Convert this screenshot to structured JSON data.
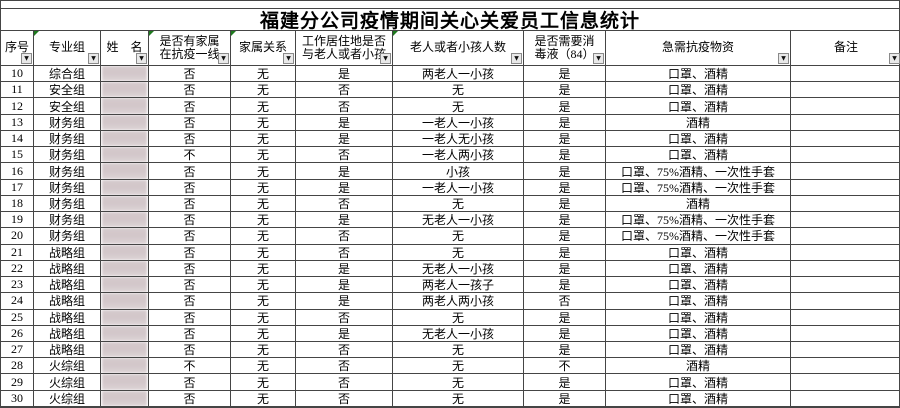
{
  "title": "福建分公司疫情期间关心关爱员工信息统计",
  "filter_icon": "▼",
  "colors": {
    "grid": "#454545",
    "corner_mark": "#1f7a1f",
    "redaction": "#d6cbce"
  },
  "columns": [
    {
      "label": "序号",
      "corner_mark": false
    },
    {
      "label": "专业组",
      "corner_mark": true
    },
    {
      "label": "姓　名",
      "corner_mark": false
    },
    {
      "label": "是否有家属\n在抗疫一线",
      "corner_mark": true
    },
    {
      "label": "家属关系",
      "corner_mark": true
    },
    {
      "label": "工作居住地是否\n与老人或者小孩",
      "corner_mark": false
    },
    {
      "label": "老人或者小孩人数",
      "corner_mark": true
    },
    {
      "label": "是否需要消\n毒液（84）",
      "corner_mark": false
    },
    {
      "label": "急需抗疫物资",
      "corner_mark": false
    },
    {
      "label": "备注",
      "corner_mark": false
    }
  ],
  "rows": [
    {
      "no": "10",
      "group": "综合组",
      "name": "",
      "family_frontline": "否",
      "family_relation": "无",
      "lives_with_elderly_children": "是",
      "elderly_children_count": "两老人一小孩",
      "needs_disinfectant": "是",
      "urgent_supplies": "口罩、酒精",
      "note": ""
    },
    {
      "no": "11",
      "group": "安全组",
      "name": "",
      "family_frontline": "否",
      "family_relation": "无",
      "lives_with_elderly_children": "否",
      "elderly_children_count": "无",
      "needs_disinfectant": "是",
      "urgent_supplies": "口罩、酒精",
      "note": ""
    },
    {
      "no": "12",
      "group": "安全组",
      "name": "",
      "family_frontline": "否",
      "family_relation": "无",
      "lives_with_elderly_children": "否",
      "elderly_children_count": "无",
      "needs_disinfectant": "是",
      "urgent_supplies": "口罩、酒精",
      "note": ""
    },
    {
      "no": "13",
      "group": "财务组",
      "name": "",
      "family_frontline": "否",
      "family_relation": "无",
      "lives_with_elderly_children": "是",
      "elderly_children_count": "一老人一小孩",
      "needs_disinfectant": "是",
      "urgent_supplies": "酒精",
      "note": ""
    },
    {
      "no": "14",
      "group": "财务组",
      "name": "",
      "family_frontline": "否",
      "family_relation": "无",
      "lives_with_elderly_children": "是",
      "elderly_children_count": "一老人无小孩",
      "needs_disinfectant": "是",
      "urgent_supplies": "口罩、酒精",
      "note": ""
    },
    {
      "no": "15",
      "group": "财务组",
      "name": "",
      "family_frontline": "不",
      "family_relation": "无",
      "lives_with_elderly_children": "否",
      "elderly_children_count": "一老人两小孩",
      "needs_disinfectant": "是",
      "urgent_supplies": "口罩、酒精",
      "note": ""
    },
    {
      "no": "16",
      "group": "财务组",
      "name": "",
      "family_frontline": "否",
      "family_relation": "无",
      "lives_with_elderly_children": "是",
      "elderly_children_count": "小孩",
      "needs_disinfectant": "是",
      "urgent_supplies": "口罩、75%酒精、一次性手套",
      "note": ""
    },
    {
      "no": "17",
      "group": "财务组",
      "name": "",
      "family_frontline": "否",
      "family_relation": "无",
      "lives_with_elderly_children": "是",
      "elderly_children_count": "一老人一小孩",
      "needs_disinfectant": "是",
      "urgent_supplies": "口罩、75%酒精、一次性手套",
      "note": ""
    },
    {
      "no": "18",
      "group": "财务组",
      "name": "",
      "family_frontline": "否",
      "family_relation": "无",
      "lives_with_elderly_children": "否",
      "elderly_children_count": "无",
      "needs_disinfectant": "是",
      "urgent_supplies": "酒精",
      "note": ""
    },
    {
      "no": "19",
      "group": "财务组",
      "name": "",
      "family_frontline": "否",
      "family_relation": "无",
      "lives_with_elderly_children": "是",
      "elderly_children_count": "无老人一小孩",
      "needs_disinfectant": "是",
      "urgent_supplies": "口罩、75%酒精、一次性手套",
      "note": ""
    },
    {
      "no": "20",
      "group": "财务组",
      "name": "",
      "family_frontline": "否",
      "family_relation": "无",
      "lives_with_elderly_children": "否",
      "elderly_children_count": "无",
      "needs_disinfectant": "是",
      "urgent_supplies": "口罩、75%酒精、一次性手套",
      "note": ""
    },
    {
      "no": "21",
      "group": "战略组",
      "name": "",
      "family_frontline": "否",
      "family_relation": "无",
      "lives_with_elderly_children": "否",
      "elderly_children_count": "无",
      "needs_disinfectant": "是",
      "urgent_supplies": "口罩、酒精",
      "note": ""
    },
    {
      "no": "22",
      "group": "战略组",
      "name": "",
      "family_frontline": "否",
      "family_relation": "无",
      "lives_with_elderly_children": "是",
      "elderly_children_count": "无老人一小孩",
      "needs_disinfectant": "是",
      "urgent_supplies": "口罩、酒精",
      "note": ""
    },
    {
      "no": "23",
      "group": "战略组",
      "name": "",
      "family_frontline": "否",
      "family_relation": "无",
      "lives_with_elderly_children": "是",
      "elderly_children_count": "两老人一孩子",
      "needs_disinfectant": "是",
      "urgent_supplies": "口罩、酒精",
      "note": ""
    },
    {
      "no": "24",
      "group": "战略组",
      "name": "",
      "family_frontline": "否",
      "family_relation": "无",
      "lives_with_elderly_children": "是",
      "elderly_children_count": "两老人两小孩",
      "needs_disinfectant": "否",
      "urgent_supplies": "口罩、酒精",
      "note": ""
    },
    {
      "no": "25",
      "group": "战略组",
      "name": "",
      "family_frontline": "否",
      "family_relation": "无",
      "lives_with_elderly_children": "否",
      "elderly_children_count": "无",
      "needs_disinfectant": "是",
      "urgent_supplies": "口罩、酒精",
      "note": ""
    },
    {
      "no": "26",
      "group": "战略组",
      "name": "",
      "family_frontline": "否",
      "family_relation": "无",
      "lives_with_elderly_children": "是",
      "elderly_children_count": "无老人一小孩",
      "needs_disinfectant": "是",
      "urgent_supplies": "口罩、酒精",
      "note": ""
    },
    {
      "no": "27",
      "group": "战略组",
      "name": "",
      "family_frontline": "否",
      "family_relation": "无",
      "lives_with_elderly_children": "否",
      "elderly_children_count": "无",
      "needs_disinfectant": "是",
      "urgent_supplies": "口罩、酒精",
      "note": ""
    },
    {
      "no": "28",
      "group": "火综组",
      "name": "",
      "family_frontline": "不",
      "family_relation": "无",
      "lives_with_elderly_children": "否",
      "elderly_children_count": "无",
      "needs_disinfectant": "不",
      "urgent_supplies": "酒精",
      "note": ""
    },
    {
      "no": "29",
      "group": "火综组",
      "name": "",
      "family_frontline": "否",
      "family_relation": "无",
      "lives_with_elderly_children": "否",
      "elderly_children_count": "无",
      "needs_disinfectant": "是",
      "urgent_supplies": "口罩、酒精",
      "note": ""
    },
    {
      "no": "30",
      "group": "火综组",
      "name": "",
      "family_frontline": "否",
      "family_relation": "无",
      "lives_with_elderly_children": "否",
      "elderly_children_count": "无",
      "needs_disinfectant": "是",
      "urgent_supplies": "口罩、酒精",
      "note": ""
    }
  ]
}
